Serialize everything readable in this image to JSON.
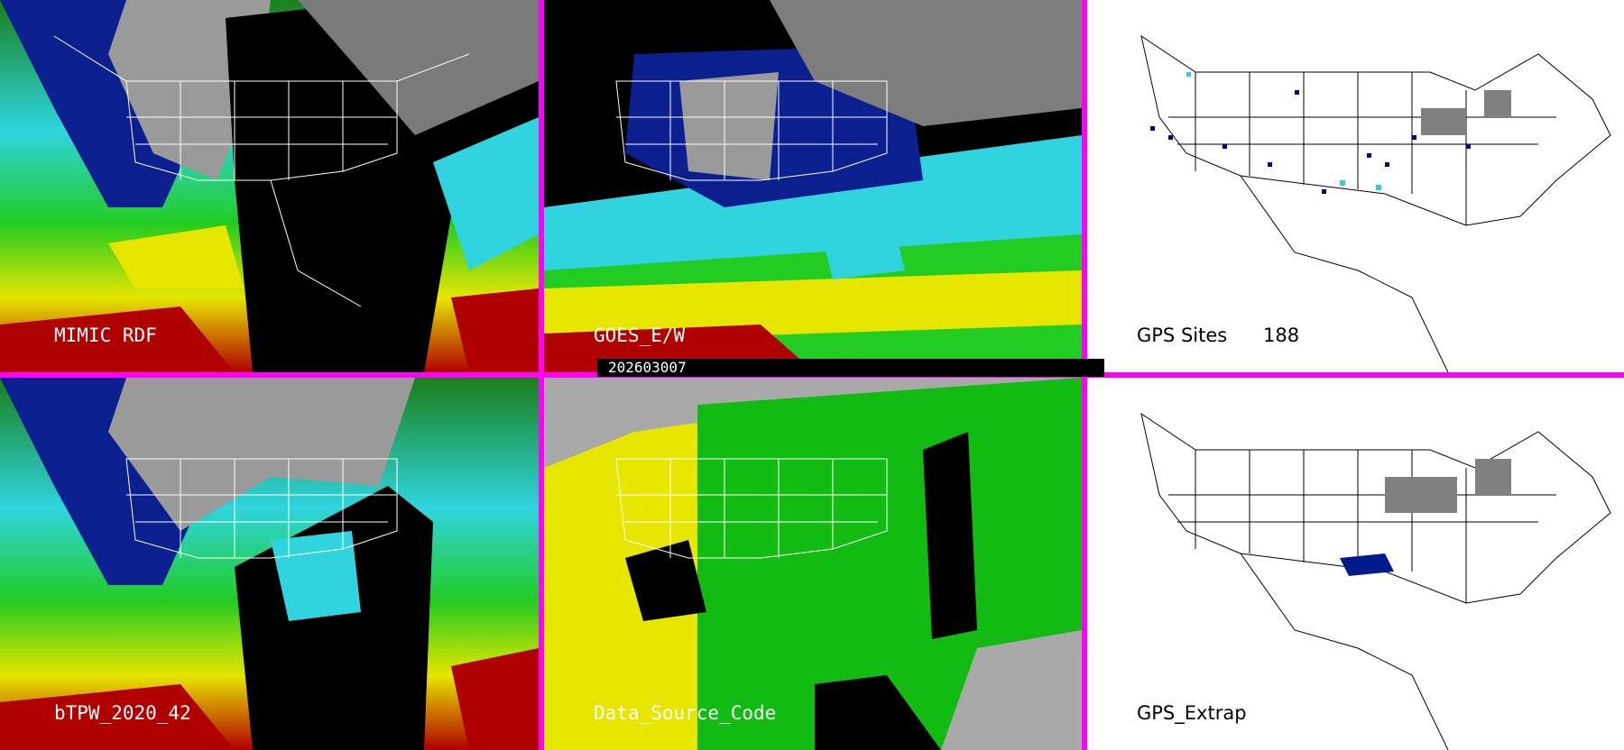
{
  "panels": {
    "mimic": {
      "label": "MIMIC RDF"
    },
    "goes": {
      "label": "GOES_E/W"
    },
    "gps_sites": {
      "label": "GPS Sites",
      "count": "188"
    },
    "btpw": {
      "label": "bTPW_2020_42"
    },
    "data_source": {
      "label": "Data_Source_Code"
    },
    "gps_extrap": {
      "label": "GPS_Extrap"
    }
  },
  "timestamp": "202603007",
  "colors": {
    "border": "#ff00ff",
    "ocean_cyan": "#33d6e0",
    "moist_green": "#22cc22",
    "yellow": "#e6e600",
    "red": "#b00000",
    "dark_blue": "#001a8c",
    "gray": "#a9a9a9",
    "black": "#000000"
  }
}
